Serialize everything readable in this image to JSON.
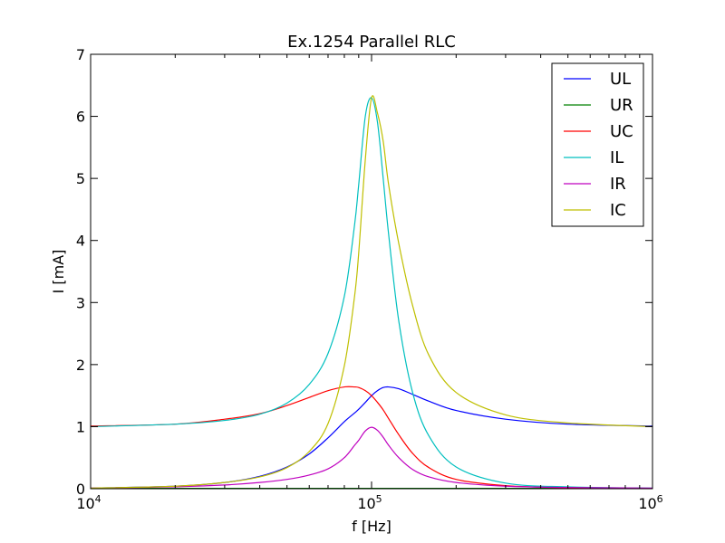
{
  "chart_data": {
    "type": "line",
    "title": "Ex.1254 Parallel RLC",
    "xlabel": "f [Hz]",
    "ylabel": "I [mA]",
    "xscale": "log",
    "xlim": [
      10000,
      1000000
    ],
    "ylim": [
      0,
      7
    ],
    "grid": false,
    "legend_position": "top-right",
    "x_ticks": [
      {
        "value": 10000,
        "base": "10",
        "exp": "4"
      },
      {
        "value": 100000,
        "base": "10",
        "exp": "5"
      },
      {
        "value": 1000000,
        "base": "10",
        "exp": "6"
      }
    ],
    "y_ticks": [
      {
        "value": 0,
        "label": "0"
      },
      {
        "value": 1,
        "label": "1"
      },
      {
        "value": 2,
        "label": "2"
      },
      {
        "value": 3,
        "label": "3"
      },
      {
        "value": 4,
        "label": "4"
      },
      {
        "value": 5,
        "label": "5"
      },
      {
        "value": 6,
        "label": "6"
      },
      {
        "value": 7,
        "label": "7"
      }
    ],
    "x": [
      10000,
      20000,
      30000,
      40000,
      50000,
      60000,
      70000,
      80000,
      87000,
      90000,
      95000,
      100000,
      105000,
      110000,
      115000,
      125000,
      140000,
      160000,
      200000,
      300000,
      500000,
      1000000
    ],
    "series": [
      {
        "name": "UL",
        "color": "#0000ff",
        "values": [
          0.01,
          0.04,
          0.1,
          0.2,
          0.35,
          0.56,
          0.82,
          1.08,
          1.22,
          1.28,
          1.39,
          1.5,
          1.58,
          1.63,
          1.64,
          1.61,
          1.52,
          1.41,
          1.26,
          1.12,
          1.04,
          1.01
        ]
      },
      {
        "name": "UR",
        "color": "#008000",
        "values": [
          0.005,
          0.005,
          0.005,
          0.005,
          0.005,
          0.005,
          0.005,
          0.005,
          0.005,
          0.005,
          0.005,
          0.005,
          0.005,
          0.005,
          0.005,
          0.005,
          0.005,
          0.005,
          0.005,
          0.005,
          0.005,
          0.005
        ]
      },
      {
        "name": "UC",
        "color": "#ff0000",
        "values": [
          1.01,
          1.04,
          1.12,
          1.21,
          1.34,
          1.47,
          1.58,
          1.64,
          1.64,
          1.63,
          1.58,
          1.5,
          1.39,
          1.27,
          1.13,
          0.87,
          0.57,
          0.34,
          0.15,
          0.05,
          0.015,
          0.004
        ]
      },
      {
        "name": "IL",
        "color": "#00bfbf",
        "values": [
          1.0,
          1.04,
          1.1,
          1.2,
          1.38,
          1.68,
          2.18,
          3.1,
          4.25,
          4.9,
          6.0,
          6.3,
          5.9,
          5.0,
          4.1,
          2.7,
          1.55,
          0.85,
          0.35,
          0.09,
          0.03,
          0.01
        ]
      },
      {
        "name": "IR",
        "color": "#bf00bf",
        "values": [
          0.01,
          0.03,
          0.06,
          0.1,
          0.15,
          0.22,
          0.32,
          0.5,
          0.7,
          0.78,
          0.93,
          0.99,
          0.94,
          0.83,
          0.7,
          0.5,
          0.31,
          0.19,
          0.1,
          0.04,
          0.02,
          0.01
        ]
      },
      {
        "name": "IC",
        "color": "#bfbf00",
        "values": [
          0.01,
          0.04,
          0.1,
          0.19,
          0.34,
          0.6,
          1.05,
          1.98,
          3.1,
          3.8,
          5.3,
          6.3,
          6.05,
          5.6,
          4.9,
          3.95,
          2.95,
          2.15,
          1.55,
          1.19,
          1.06,
          1.0
        ]
      }
    ]
  }
}
